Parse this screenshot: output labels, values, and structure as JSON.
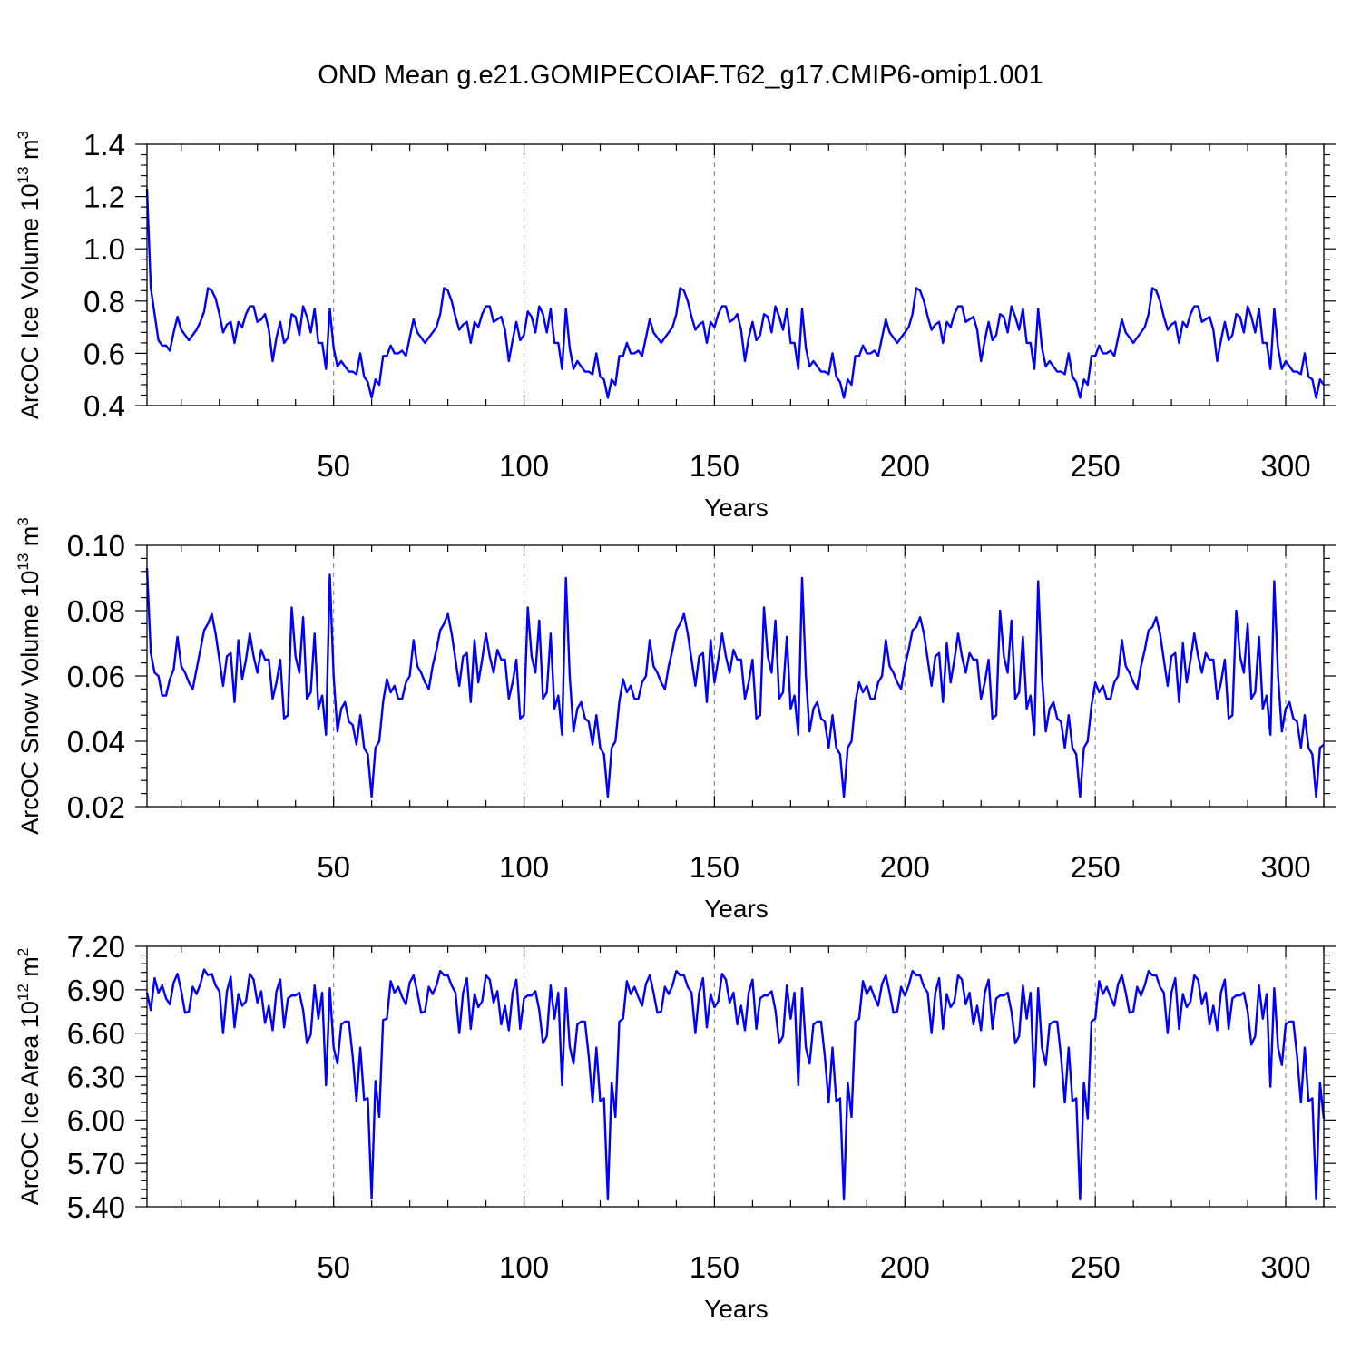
{
  "figure": {
    "title": "OND Mean g.e21.GOMIPECOIAF.T62_g17.CMIP6-omip1.001"
  },
  "chart_data": [
    {
      "type": "line",
      "title": "OND Mean g.e21.GOMIPECOIAF.T62_g17.CMIP6-omip1.001",
      "xlabel": "Years",
      "ylabel": "ArcOC Ice Volume 10",
      "ylabel_exp": "13",
      "ylabel_unit": "m",
      "ylabel_unit_exp": "3",
      "xlim": [
        1,
        310
      ],
      "ylim": [
        0.4,
        1.4
      ],
      "xticks": [
        50,
        100,
        150,
        200,
        250,
        300
      ],
      "yticks": [
        "0.4",
        "0.6",
        "0.8",
        "1.0",
        "1.2",
        "1.4"
      ],
      "grid": "vertical dashed at major x ticks",
      "color": "#0000ff",
      "x_start": 1,
      "values": [
        1.23,
        0.85,
        0.75,
        0.65,
        0.63,
        0.63,
        0.61,
        0.68,
        0.74,
        0.69,
        0.67,
        0.65,
        0.67,
        0.69,
        0.72,
        0.76,
        0.85,
        0.84,
        0.81,
        0.75,
        0.68,
        0.71,
        0.72,
        0.64,
        0.72,
        0.7,
        0.75,
        0.78,
        0.78,
        0.72,
        0.73,
        0.75,
        0.69,
        0.57,
        0.66,
        0.72,
        0.64,
        0.66,
        0.75,
        0.74,
        0.67,
        0.78,
        0.74,
        0.68,
        0.77,
        0.64,
        0.64,
        0.54,
        0.77,
        0.62,
        0.55,
        0.57,
        0.55,
        0.53,
        0.53,
        0.52,
        0.6,
        0.51,
        0.49,
        0.43,
        0.5,
        0.48,
        0.59,
        0.59,
        0.63,
        0.6,
        0.6,
        0.61,
        0.59,
        0.66,
        0.73,
        0.68,
        0.66,
        0.64,
        0.66,
        0.68,
        0.7,
        0.75,
        0.85,
        0.84,
        0.8,
        0.74,
        0.69,
        0.71,
        0.72,
        0.64,
        0.72,
        0.7,
        0.75,
        0.78,
        0.78,
        0.72,
        0.73,
        0.74,
        0.69,
        0.57,
        0.65,
        0.72,
        0.65,
        0.67,
        0.76,
        0.74,
        0.68,
        0.78,
        0.75,
        0.68,
        0.77,
        0.64,
        0.64,
        0.54,
        0.77,
        0.62,
        0.54,
        0.57,
        0.55,
        0.53,
        0.53,
        0.52,
        0.6,
        0.51,
        0.5,
        0.43,
        0.5,
        0.48,
        0.59,
        0.59,
        0.64,
        0.6,
        0.6,
        0.61,
        0.59,
        0.66,
        0.73,
        0.68,
        0.66,
        0.64,
        0.66,
        0.68,
        0.7,
        0.75,
        0.85,
        0.84,
        0.8,
        0.74,
        0.69,
        0.71,
        0.72,
        0.64,
        0.72,
        0.7,
        0.75,
        0.78,
        0.78,
        0.72,
        0.73,
        0.75,
        0.69,
        0.57,
        0.66,
        0.72,
        0.65,
        0.67,
        0.75,
        0.74,
        0.68,
        0.78,
        0.74,
        0.69,
        0.77,
        0.64,
        0.64,
        0.54,
        0.77,
        0.62,
        0.55,
        0.57,
        0.55,
        0.53,
        0.53,
        0.52,
        0.6,
        0.51,
        0.49,
        0.43,
        0.5,
        0.48,
        0.59,
        0.59,
        0.63,
        0.6,
        0.6,
        0.61,
        0.59,
        0.66,
        0.73,
        0.68,
        0.66,
        0.64,
        0.66,
        0.68,
        0.7,
        0.75,
        0.85,
        0.84,
        0.8,
        0.74,
        0.69,
        0.71,
        0.72,
        0.64,
        0.72,
        0.7,
        0.75,
        0.78,
        0.78,
        0.72,
        0.73,
        0.74,
        0.69,
        0.57,
        0.65,
        0.72,
        0.65,
        0.67,
        0.75,
        0.74,
        0.68,
        0.78,
        0.74,
        0.69,
        0.77,
        0.64,
        0.64,
        0.54,
        0.77,
        0.62,
        0.55,
        0.57,
        0.55,
        0.53,
        0.53,
        0.52,
        0.6,
        0.51,
        0.49,
        0.43,
        0.5,
        0.48,
        0.59,
        0.59,
        0.63,
        0.6,
        0.6,
        0.61,
        0.59,
        0.66,
        0.73,
        0.68,
        0.66,
        0.64,
        0.66,
        0.68,
        0.7,
        0.75,
        0.85,
        0.84,
        0.8,
        0.74,
        0.69,
        0.71,
        0.72,
        0.64,
        0.72,
        0.7,
        0.75,
        0.78,
        0.78,
        0.72,
        0.73,
        0.74,
        0.69,
        0.57,
        0.65,
        0.72,
        0.65,
        0.67,
        0.75,
        0.74,
        0.68,
        0.78,
        0.74,
        0.68,
        0.77,
        0.64,
        0.64,
        0.54,
        0.77,
        0.62,
        0.54,
        0.57,
        0.55,
        0.53,
        0.53,
        0.52,
        0.6,
        0.51,
        0.5,
        0.43,
        0.5,
        0.48
      ]
    },
    {
      "type": "line",
      "xlabel": "Years",
      "ylabel": "ArcOC Snow Volume 10",
      "ylabel_exp": "13",
      "ylabel_unit": "m",
      "ylabel_unit_exp": "3",
      "xlim": [
        1,
        310
      ],
      "ylim": [
        0.02,
        0.1
      ],
      "xticks": [
        50,
        100,
        150,
        200,
        250,
        300
      ],
      "yticks": [
        "0.02",
        "0.04",
        "0.06",
        "0.08",
        "0.10"
      ],
      "grid": "vertical dashed at major x ticks",
      "color": "#0000ff",
      "x_start": 1,
      "values": [
        0.093,
        0.067,
        0.061,
        0.06,
        0.054,
        0.054,
        0.059,
        0.062,
        0.072,
        0.063,
        0.061,
        0.058,
        0.056,
        0.062,
        0.068,
        0.074,
        0.076,
        0.079,
        0.073,
        0.065,
        0.057,
        0.066,
        0.067,
        0.052,
        0.071,
        0.059,
        0.065,
        0.073,
        0.066,
        0.061,
        0.068,
        0.065,
        0.065,
        0.053,
        0.058,
        0.065,
        0.047,
        0.048,
        0.081,
        0.066,
        0.061,
        0.078,
        0.053,
        0.055,
        0.073,
        0.05,
        0.054,
        0.042,
        0.091,
        0.06,
        0.043,
        0.05,
        0.052,
        0.046,
        0.045,
        0.039,
        0.048,
        0.038,
        0.036,
        0.023,
        0.038,
        0.04,
        0.052,
        0.059,
        0.055,
        0.057,
        0.053,
        0.053,
        0.058,
        0.06,
        0.071,
        0.063,
        0.061,
        0.058,
        0.056,
        0.063,
        0.068,
        0.074,
        0.076,
        0.079,
        0.073,
        0.065,
        0.057,
        0.066,
        0.067,
        0.052,
        0.071,
        0.058,
        0.065,
        0.073,
        0.066,
        0.061,
        0.068,
        0.065,
        0.065,
        0.053,
        0.058,
        0.065,
        0.047,
        0.048,
        0.081,
        0.066,
        0.061,
        0.077,
        0.053,
        0.055,
        0.073,
        0.05,
        0.054,
        0.042,
        0.09,
        0.06,
        0.043,
        0.05,
        0.052,
        0.047,
        0.046,
        0.039,
        0.048,
        0.038,
        0.036,
        0.023,
        0.038,
        0.04,
        0.052,
        0.059,
        0.055,
        0.057,
        0.053,
        0.053,
        0.058,
        0.06,
        0.071,
        0.063,
        0.061,
        0.058,
        0.056,
        0.063,
        0.068,
        0.074,
        0.076,
        0.079,
        0.073,
        0.065,
        0.057,
        0.066,
        0.067,
        0.052,
        0.071,
        0.058,
        0.065,
        0.073,
        0.066,
        0.061,
        0.068,
        0.065,
        0.065,
        0.053,
        0.058,
        0.065,
        0.047,
        0.048,
        0.081,
        0.066,
        0.061,
        0.077,
        0.053,
        0.055,
        0.072,
        0.05,
        0.054,
        0.042,
        0.09,
        0.06,
        0.043,
        0.05,
        0.052,
        0.047,
        0.046,
        0.038,
        0.048,
        0.038,
        0.036,
        0.023,
        0.038,
        0.04,
        0.052,
        0.058,
        0.055,
        0.057,
        0.053,
        0.053,
        0.058,
        0.06,
        0.071,
        0.063,
        0.061,
        0.058,
        0.056,
        0.063,
        0.068,
        0.074,
        0.075,
        0.078,
        0.073,
        0.065,
        0.057,
        0.066,
        0.067,
        0.052,
        0.07,
        0.058,
        0.065,
        0.073,
        0.066,
        0.061,
        0.067,
        0.065,
        0.065,
        0.053,
        0.058,
        0.065,
        0.047,
        0.048,
        0.08,
        0.066,
        0.061,
        0.077,
        0.053,
        0.055,
        0.072,
        0.05,
        0.054,
        0.042,
        0.089,
        0.06,
        0.043,
        0.05,
        0.052,
        0.047,
        0.046,
        0.038,
        0.048,
        0.038,
        0.036,
        0.023,
        0.038,
        0.04,
        0.051,
        0.058,
        0.055,
        0.057,
        0.053,
        0.053,
        0.058,
        0.06,
        0.071,
        0.063,
        0.061,
        0.058,
        0.056,
        0.063,
        0.068,
        0.074,
        0.075,
        0.078,
        0.073,
        0.065,
        0.057,
        0.066,
        0.067,
        0.052,
        0.07,
        0.058,
        0.065,
        0.073,
        0.066,
        0.061,
        0.067,
        0.065,
        0.065,
        0.053,
        0.058,
        0.065,
        0.047,
        0.048,
        0.08,
        0.066,
        0.061,
        0.076,
        0.053,
        0.055,
        0.072,
        0.05,
        0.054,
        0.042,
        0.089,
        0.06,
        0.043,
        0.05,
        0.052,
        0.047,
        0.046,
        0.038,
        0.048,
        0.038,
        0.036,
        0.023,
        0.038,
        0.039
      ]
    },
    {
      "type": "line",
      "xlabel": "Years",
      "ylabel": "ArcOC Ice Area 10",
      "ylabel_exp": "12",
      "ylabel_unit": "m",
      "ylabel_unit_exp": "2",
      "xlim": [
        1,
        310
      ],
      "ylim": [
        5.4,
        7.2
      ],
      "xticks": [
        50,
        100,
        150,
        200,
        250,
        300
      ],
      "yticks": [
        "5.40",
        "5.70",
        "6.00",
        "6.30",
        "6.60",
        "6.90",
        "7.20"
      ],
      "grid": "vertical dashed at major x ticks",
      "color": "#0000ff",
      "x_start": 1,
      "values": [
        6.88,
        6.76,
        6.98,
        6.88,
        6.93,
        6.84,
        6.8,
        6.95,
        7.01,
        6.89,
        6.74,
        6.75,
        6.92,
        6.87,
        6.94,
        7.04,
        7.0,
        7.01,
        6.93,
        6.89,
        6.6,
        6.89,
        6.99,
        6.64,
        6.87,
        6.79,
        6.82,
        7.01,
        6.97,
        6.81,
        6.89,
        6.67,
        6.79,
        6.62,
        6.89,
        6.97,
        6.64,
        6.84,
        6.86,
        6.86,
        6.88,
        6.76,
        6.53,
        6.59,
        6.93,
        6.7,
        6.88,
        6.24,
        6.91,
        6.5,
        6.39,
        6.66,
        6.68,
        6.68,
        6.44,
        6.13,
        6.5,
        6.14,
        6.15,
        5.46,
        6.27,
        6.02,
        6.69,
        6.7,
        6.96,
        6.88,
        6.92,
        6.85,
        6.8,
        6.95,
        7.0,
        6.88,
        6.74,
        6.75,
        6.92,
        6.87,
        6.93,
        7.03,
        7.0,
        7.0,
        6.93,
        6.88,
        6.6,
        6.88,
        6.98,
        6.63,
        6.87,
        6.78,
        6.82,
        7.0,
        6.97,
        6.81,
        6.89,
        6.66,
        6.79,
        6.62,
        6.88,
        6.97,
        6.63,
        6.84,
        6.86,
        6.86,
        6.89,
        6.76,
        6.53,
        6.58,
        6.93,
        6.7,
        6.88,
        6.24,
        6.91,
        6.51,
        6.39,
        6.66,
        6.68,
        6.68,
        6.44,
        6.12,
        6.5,
        6.13,
        6.15,
        5.45,
        6.26,
        6.02,
        6.68,
        6.7,
        6.96,
        6.87,
        6.92,
        6.85,
        6.79,
        6.94,
        7.0,
        6.88,
        6.74,
        6.75,
        6.92,
        6.87,
        6.93,
        7.03,
        7.0,
        7.0,
        6.92,
        6.88,
        6.6,
        6.88,
        6.98,
        6.64,
        6.87,
        6.78,
        6.82,
        7.01,
        6.97,
        6.81,
        6.88,
        6.66,
        6.79,
        6.62,
        6.88,
        6.97,
        6.63,
        6.84,
        6.86,
        6.86,
        6.89,
        6.76,
        6.53,
        6.58,
        6.93,
        6.7,
        6.88,
        6.24,
        6.91,
        6.5,
        6.39,
        6.66,
        6.68,
        6.68,
        6.44,
        6.12,
        6.5,
        6.13,
        6.15,
        5.45,
        6.26,
        6.02,
        6.68,
        6.7,
        6.96,
        6.87,
        6.92,
        6.85,
        6.79,
        6.94,
        7.0,
        6.88,
        6.74,
        6.75,
        6.92,
        6.86,
        6.93,
        7.03,
        7.0,
        7.0,
        6.92,
        6.88,
        6.6,
        6.88,
        6.98,
        6.63,
        6.87,
        6.78,
        6.82,
        7.0,
        6.97,
        6.8,
        6.88,
        6.66,
        6.79,
        6.62,
        6.88,
        6.97,
        6.63,
        6.84,
        6.86,
        6.86,
        6.88,
        6.75,
        6.53,
        6.58,
        6.93,
        6.7,
        6.88,
        6.23,
        6.91,
        6.5,
        6.38,
        6.66,
        6.68,
        6.68,
        6.44,
        6.12,
        6.5,
        6.13,
        6.15,
        5.45,
        6.26,
        6.01,
        6.68,
        6.7,
        6.96,
        6.87,
        6.92,
        6.85,
        6.79,
        6.94,
        7.0,
        6.88,
        6.74,
        6.75,
        6.92,
        6.86,
        6.93,
        7.03,
        7.0,
        7.0,
        6.92,
        6.88,
        6.6,
        6.88,
        6.98,
        6.63,
        6.87,
        6.78,
        6.82,
        7.0,
        6.97,
        6.8,
        6.88,
        6.66,
        6.79,
        6.62,
        6.88,
        6.97,
        6.63,
        6.84,
        6.86,
        6.86,
        6.88,
        6.75,
        6.52,
        6.58,
        6.93,
        6.7,
        6.87,
        6.23,
        6.91,
        6.5,
        6.38,
        6.66,
        6.68,
        6.68,
        6.44,
        6.12,
        6.5,
        6.13,
        6.15,
        5.45,
        6.26,
        6.01
      ]
    }
  ]
}
